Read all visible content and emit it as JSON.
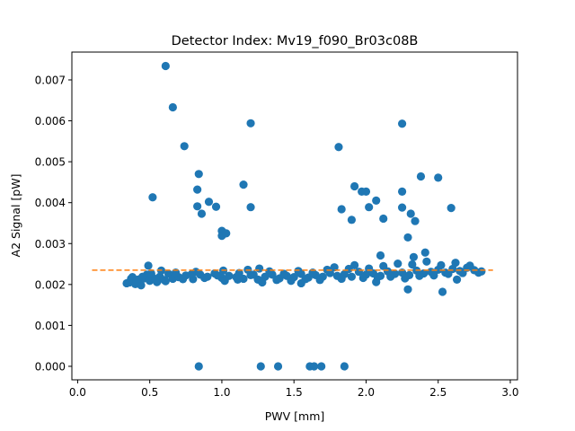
{
  "chart_data": {
    "type": "scatter",
    "title": "Detector Index: Mv19_f090_Br03c08B",
    "xlabel": "PWV [mm]",
    "ylabel": "A2 Signal [pW]",
    "xlim": [
      -0.04,
      3.05
    ],
    "ylim": [
      -0.00033,
      0.00768
    ],
    "xticks": [
      0.0,
      0.5,
      1.0,
      1.5,
      2.0,
      2.5,
      3.0
    ],
    "xtick_labels": [
      "0.0",
      "0.5",
      "1.0",
      "1.5",
      "2.0",
      "2.5",
      "3.0"
    ],
    "yticks": [
      0.0,
      0.001,
      0.002,
      0.003,
      0.004,
      0.005,
      0.006,
      0.007
    ],
    "ytick_labels": [
      "0.000",
      "0.001",
      "0.002",
      "0.003",
      "0.004",
      "0.005",
      "0.006",
      "0.007"
    ],
    "grid": false,
    "legend": "none",
    "series": [
      {
        "kind": "points",
        "color": "#1f77b4",
        "band_core": [
          [
            0.36,
            0.00205
          ],
          [
            0.38,
            0.00218
          ],
          [
            0.4,
            0.00201
          ],
          [
            0.42,
            0.00212
          ],
          [
            0.44,
            0.00198
          ],
          [
            0.46,
            0.00215
          ],
          [
            0.48,
            0.00224
          ],
          [
            0.5,
            0.00209
          ],
          [
            0.52,
            0.00217
          ],
          [
            0.55,
            0.00206
          ],
          [
            0.57,
            0.00219
          ],
          [
            0.6,
            0.00211
          ],
          [
            0.63,
            0.00226
          ],
          [
            0.66,
            0.00214
          ],
          [
            0.7,
            0.00218
          ],
          [
            0.75,
            0.00222
          ],
          [
            0.8,
            0.00213
          ],
          [
            0.85,
            0.00224
          ],
          [
            0.9,
            0.00219
          ],
          [
            0.95,
            0.00227
          ],
          [
            1.0,
            0.00216
          ],
          [
            1.05,
            0.00221
          ],
          [
            1.1,
            0.00218
          ],
          [
            1.15,
            0.00214
          ],
          [
            1.2,
            0.00223
          ],
          [
            1.25,
            0.00212
          ],
          [
            1.3,
            0.00219
          ],
          [
            1.35,
            0.00224
          ],
          [
            1.4,
            0.00215
          ],
          [
            1.45,
            0.00221
          ],
          [
            1.5,
            0.00218
          ],
          [
            1.55,
            0.00226
          ],
          [
            1.6,
            0.00217
          ],
          [
            1.65,
            0.00223
          ],
          [
            1.7,
            0.00219
          ],
          [
            1.75,
            0.00228
          ],
          [
            1.8,
            0.00221
          ],
          [
            1.85,
            0.00225
          ],
          [
            1.9,
            0.00219
          ],
          [
            1.95,
            0.00231
          ],
          [
            2.0,
            0.00224
          ],
          [
            2.05,
            0.00227
          ],
          [
            2.1,
            0.00221
          ],
          [
            2.15,
            0.00232
          ],
          [
            2.2,
            0.00226
          ],
          [
            2.25,
            0.00229
          ],
          [
            2.3,
            0.00223
          ],
          [
            2.35,
            0.00234
          ],
          [
            2.4,
            0.00227
          ],
          [
            2.45,
            0.00231
          ],
          [
            2.5,
            0.00236
          ],
          [
            2.55,
            0.00229
          ],
          [
            2.6,
            0.00238
          ],
          [
            2.65,
            0.00233
          ],
          [
            2.7,
            0.00241
          ],
          [
            2.75,
            0.00235
          ],
          [
            2.8,
            0.00232
          ]
        ],
        "band_extra": [
          [
            0.34,
            0.00203
          ],
          [
            0.37,
            0.00214
          ],
          [
            0.41,
            0.00207
          ],
          [
            0.45,
            0.00219
          ],
          [
            0.49,
            0.00246
          ],
          [
            0.51,
            0.00227
          ],
          [
            0.58,
            0.00234
          ],
          [
            0.61,
            0.00208
          ],
          [
            0.68,
            0.00229
          ],
          [
            0.73,
            0.00213
          ],
          [
            0.82,
            0.00231
          ],
          [
            0.88,
            0.00216
          ],
          [
            0.97,
            0.00222
          ],
          [
            1.02,
            0.00209
          ],
          [
            1.12,
            0.00228
          ],
          [
            1.18,
            0.00236
          ],
          [
            1.22,
            0.00224
          ],
          [
            1.28,
            0.00205
          ],
          [
            1.33,
            0.00232
          ],
          [
            1.38,
            0.00211
          ],
          [
            1.43,
            0.00226
          ],
          [
            1.48,
            0.00209
          ],
          [
            1.53,
            0.00233
          ],
          [
            1.58,
            0.00213
          ],
          [
            1.63,
            0.00229
          ],
          [
            1.68,
            0.00211
          ],
          [
            1.73,
            0.00236
          ],
          [
            1.78,
            0.00242
          ],
          [
            1.83,
            0.00214
          ],
          [
            1.88,
            0.00238
          ],
          [
            1.92,
            0.00247
          ],
          [
            1.98,
            0.00216
          ],
          [
            2.02,
            0.00239
          ],
          [
            2.08,
            0.00218
          ],
          [
            2.12,
            0.00245
          ],
          [
            2.17,
            0.00219
          ],
          [
            2.22,
            0.00251
          ],
          [
            2.27,
            0.00215
          ],
          [
            2.32,
            0.00249
          ],
          [
            2.37,
            0.00221
          ],
          [
            2.42,
            0.00256
          ],
          [
            2.47,
            0.00222
          ],
          [
            2.52,
            0.00247
          ],
          [
            2.57,
            0.00226
          ],
          [
            2.62,
            0.00253
          ],
          [
            2.67,
            0.00228
          ],
          [
            2.72,
            0.00246
          ],
          [
            2.78,
            0.00229
          ],
          [
            2.29,
            0.00188
          ],
          [
            2.53,
            0.00182
          ],
          [
            2.41,
            0.00278
          ],
          [
            2.1,
            0.00271
          ],
          [
            2.33,
            0.00267
          ],
          [
            1.26,
            0.00239
          ],
          [
            1.01,
            0.00234
          ],
          [
            0.79,
            0.00225
          ],
          [
            1.55,
            0.00203
          ],
          [
            2.07,
            0.00206
          ],
          [
            2.63,
            0.00212
          ],
          [
            0.54,
            0.00213
          ],
          [
            1.11,
            0.00212
          ]
        ],
        "outliers": [
          [
            0.61,
            0.00734
          ],
          [
            0.66,
            0.00633
          ],
          [
            0.52,
            0.00413
          ],
          [
            0.74,
            0.00538
          ],
          [
            0.84,
            0.0047
          ],
          [
            0.83,
            0.00432
          ],
          [
            0.83,
            0.00391
          ],
          [
            0.86,
            0.00373
          ],
          [
            0.91,
            0.00402
          ],
          [
            0.96,
            0.0039
          ],
          [
            1.0,
            0.00331
          ],
          [
            1.0,
            0.00319
          ],
          [
            1.03,
            0.00325
          ],
          [
            1.15,
            0.00444
          ],
          [
            1.2,
            0.00594
          ],
          [
            1.2,
            0.00389
          ],
          [
            1.81,
            0.00536
          ],
          [
            1.83,
            0.00384
          ],
          [
            1.9,
            0.00358
          ],
          [
            1.92,
            0.0044
          ],
          [
            1.97,
            0.00427
          ],
          [
            2.0,
            0.00427
          ],
          [
            2.02,
            0.00389
          ],
          [
            2.07,
            0.00405
          ],
          [
            2.12,
            0.00361
          ],
          [
            2.25,
            0.00593
          ],
          [
            2.25,
            0.00427
          ],
          [
            2.25,
            0.00388
          ],
          [
            2.29,
            0.00315
          ],
          [
            2.31,
            0.00373
          ],
          [
            2.34,
            0.00355
          ],
          [
            2.38,
            0.00464
          ],
          [
            2.5,
            0.00461
          ],
          [
            2.59,
            0.00387
          ]
        ],
        "zeros": [
          [
            0.84,
            0.0
          ],
          [
            1.27,
            0.0
          ],
          [
            1.39,
            0.0
          ],
          [
            1.61,
            0.0
          ],
          [
            1.64,
            0.0
          ],
          [
            1.69,
            0.0
          ],
          [
            1.85,
            0.0
          ]
        ]
      },
      {
        "kind": "dashed-line",
        "color": "#ff7f0e",
        "x": [
          0.1,
          2.88
        ],
        "y": [
          0.00235,
          0.00235
        ]
      }
    ]
  }
}
